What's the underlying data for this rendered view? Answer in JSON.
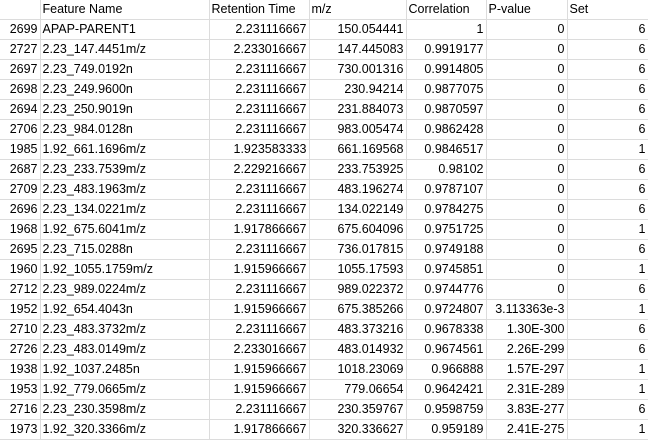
{
  "headers": [
    "",
    "Feature Name",
    "Retention Time",
    "m/z",
    "Correlation",
    "P-value",
    "Set"
  ],
  "rows": [
    [
      "2699",
      "APAP-PARENT1",
      "2.231116667",
      "150.054441",
      "1",
      "0",
      "6"
    ],
    [
      "2727",
      "2.23_147.4451m/z",
      "2.233016667",
      "147.445083",
      "0.9919177",
      "0",
      "6"
    ],
    [
      "2697",
      "2.23_749.0192n",
      "2.231116667",
      "730.001316",
      "0.9914805",
      "0",
      "6"
    ],
    [
      "2698",
      "2.23_249.9600n",
      "2.231116667",
      "230.94214",
      "0.9877075",
      "0",
      "6"
    ],
    [
      "2694",
      "2.23_250.9019n",
      "2.231116667",
      "231.884073",
      "0.9870597",
      "0",
      "6"
    ],
    [
      "2706",
      "2.23_984.0128n",
      "2.231116667",
      "983.005474",
      "0.9862428",
      "0",
      "6"
    ],
    [
      "1985",
      "1.92_661.1696m/z",
      "1.923583333",
      "661.169568",
      "0.9846517",
      "0",
      "1"
    ],
    [
      "2687",
      "2.23_233.7539m/z",
      "2.229216667",
      "233.753925",
      "0.98102",
      "0",
      "6"
    ],
    [
      "2709",
      "2.23_483.1963m/z",
      "2.231116667",
      "483.196274",
      "0.9787107",
      "0",
      "6"
    ],
    [
      "2696",
      "2.23_134.0221m/z",
      "2.231116667",
      "134.022149",
      "0.9784275",
      "0",
      "6"
    ],
    [
      "1968",
      "1.92_675.6041m/z",
      "1.917866667",
      "675.604096",
      "0.9751725",
      "0",
      "1"
    ],
    [
      "2695",
      "2.23_715.0288n",
      "2.231116667",
      "736.017815",
      "0.9749188",
      "0",
      "6"
    ],
    [
      "1960",
      "1.92_1055.1759m/z",
      "1.915966667",
      "1055.17593",
      "0.9745851",
      "0",
      "1"
    ],
    [
      "2712",
      "2.23_989.0224m/z",
      "2.231116667",
      "989.022372",
      "0.9744776",
      "0",
      "6"
    ],
    [
      "1952",
      "1.92_654.4043n",
      "1.915966667",
      "675.385266",
      "0.9724807",
      "3.113363e-3",
      "1"
    ],
    [
      "2710",
      "2.23_483.3732m/z",
      "2.231116667",
      "483.373216",
      "0.9678338",
      "1.30E-300",
      "6"
    ],
    [
      "2726",
      "2.23_483.0149m/z",
      "2.233016667",
      "483.014932",
      "0.9674561",
      "2.26E-299",
      "6"
    ],
    [
      "1938",
      "1.92_1037.2485n",
      "1.915966667",
      "1018.23069",
      "0.966888",
      "1.57E-297",
      "1"
    ],
    [
      "1953",
      "1.92_779.0665m/z",
      "1.915966667",
      "779.06654",
      "0.9642421",
      "2.31E-289",
      "1"
    ],
    [
      "2716",
      "2.23_230.3598m/z",
      "2.231116667",
      "230.359767",
      "0.9598759",
      "3.83E-277",
      "6"
    ],
    [
      "1973",
      "1.92_320.3366m/z",
      "1.917866667",
      "320.336627",
      "0.959189",
      "2.41E-275",
      "1"
    ]
  ]
}
